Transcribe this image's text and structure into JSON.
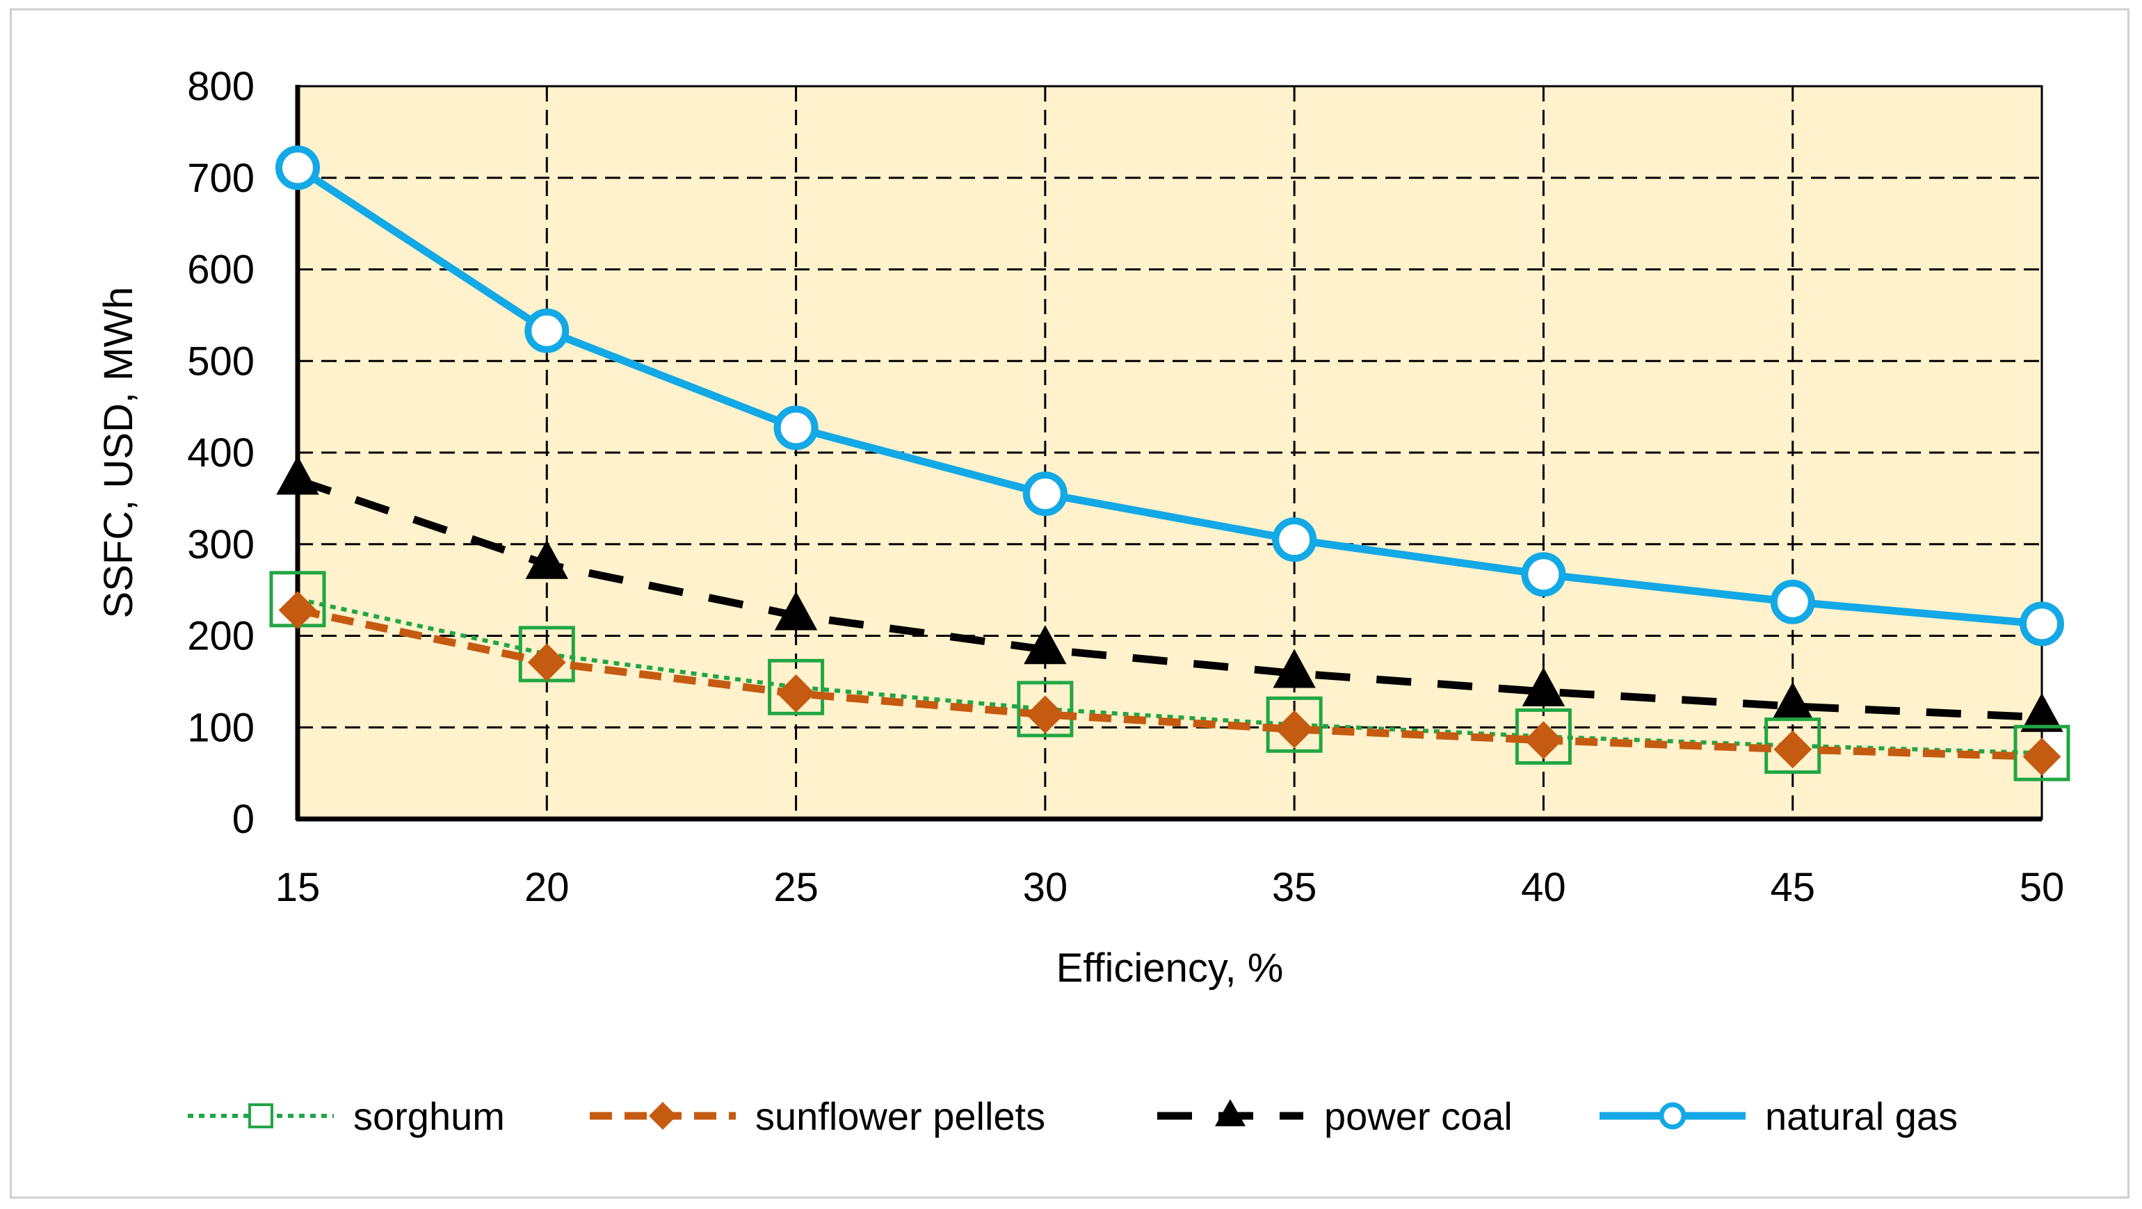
{
  "chart_data": {
    "type": "line",
    "title": "",
    "xlabel": "Efficiency, %",
    "ylabel": "SSFC, USD, MWh",
    "x": [
      15,
      20,
      25,
      30,
      35,
      40,
      45,
      50
    ],
    "x_tick_labels": [
      "15",
      "20",
      "25",
      "30",
      "35",
      "40",
      "45",
      "50"
    ],
    "xlim": [
      15,
      50
    ],
    "ylim": [
      0,
      800
    ],
    "y_ticks": [
      0,
      100,
      200,
      300,
      400,
      500,
      600,
      700,
      800
    ],
    "y_tick_labels": [
      "0",
      "100",
      "200",
      "300",
      "400",
      "500",
      "600",
      "700",
      "800"
    ],
    "grid": true,
    "legend_position": "bottom",
    "plot_background": "#FFF2CC",
    "series": [
      {
        "name": "sorghum",
        "color": "#21A645",
        "line": "dotted",
        "marker": "square-open",
        "values": [
          240,
          180,
          144,
          120,
          103,
          90,
          80,
          72
        ]
      },
      {
        "name": "sunflower pellets",
        "color": "#C55A11",
        "line": "dashed",
        "marker": "diamond",
        "values": [
          228,
          171,
          137,
          114,
          98,
          86,
          76,
          68
        ]
      },
      {
        "name": "power coal",
        "color": "#000000",
        "line": "long-dash",
        "marker": "triangle",
        "values": [
          370,
          278,
          222,
          185,
          159,
          139,
          123,
          111
        ]
      },
      {
        "name": "natural gas",
        "color": "#13A8E6",
        "line": "solid",
        "marker": "circle-open",
        "values": [
          711,
          533,
          427,
          355,
          305,
          267,
          237,
          213
        ]
      }
    ]
  }
}
